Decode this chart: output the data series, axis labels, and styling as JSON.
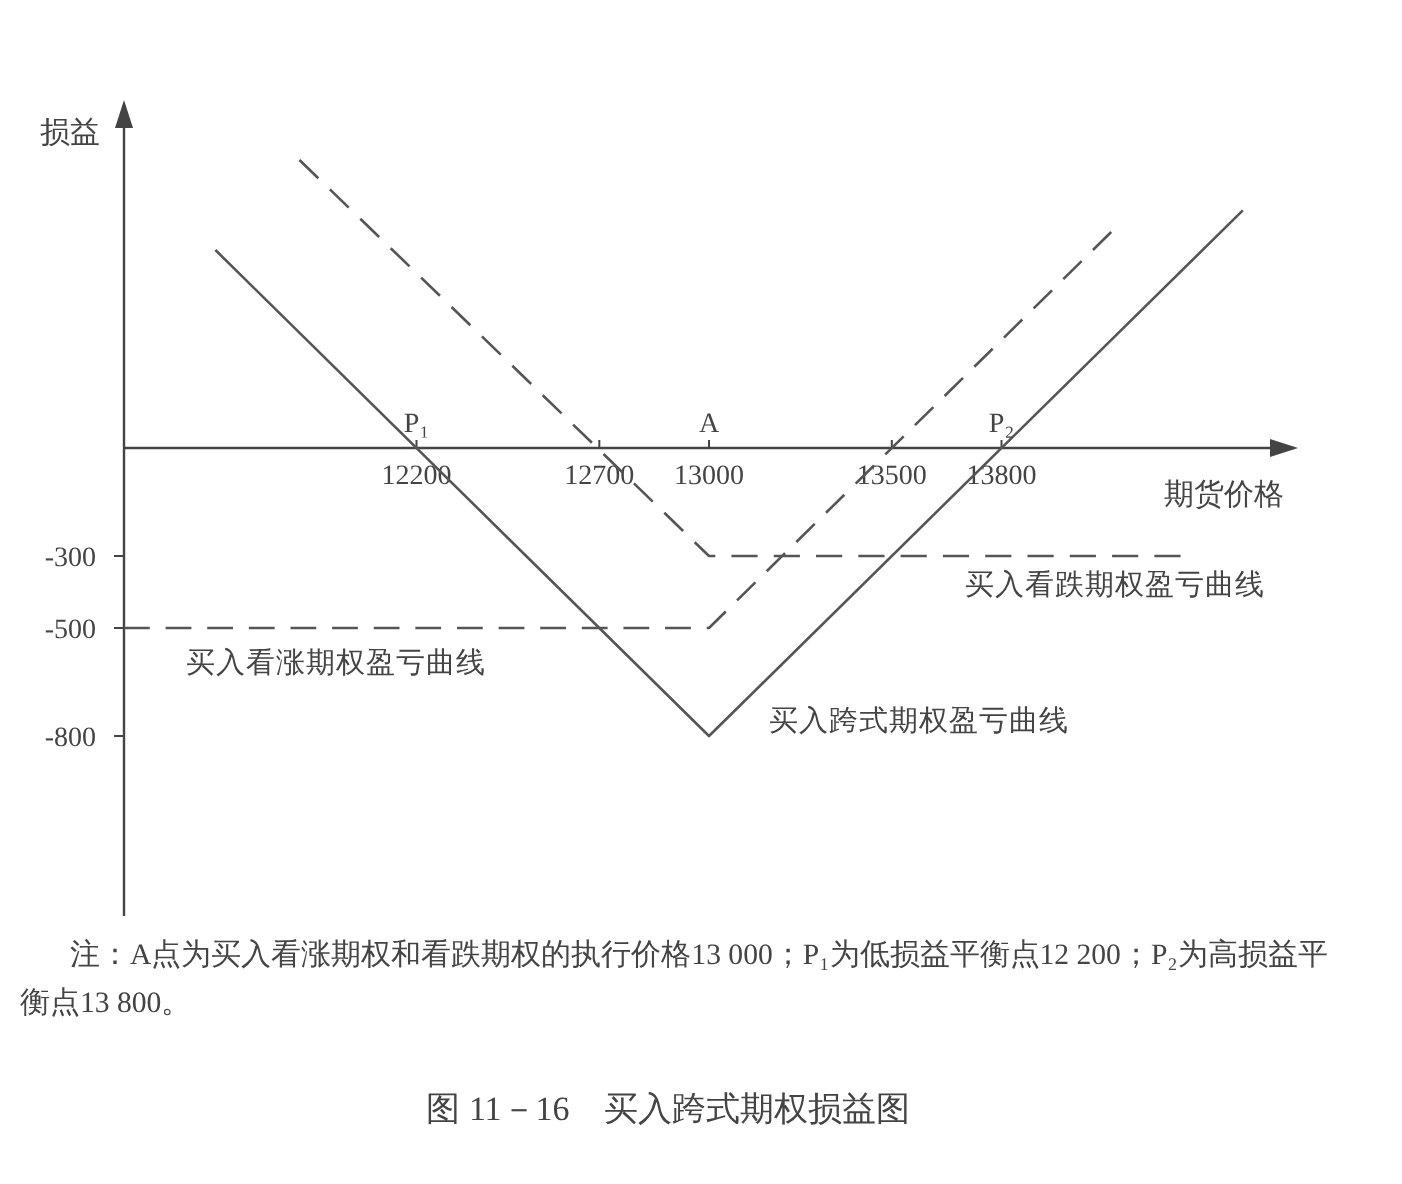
{
  "chart_data": {
    "type": "line",
    "title": "图 11－16　买入跨式期权损益图",
    "xlabel": "期货价格",
    "ylabel": "损益",
    "xlim": [
      11400,
      14600
    ],
    "ylim": [
      -1300,
      950
    ],
    "xticks": [
      12200,
      12700,
      13000,
      13500,
      13800
    ],
    "yticks": [
      -800,
      -500,
      -300
    ],
    "series": [
      {
        "name": "买入跨式期权盈亏曲线",
        "color": "#555555",
        "line_style": "solid",
        "x": [
          11650,
          13000,
          14460
        ],
        "values": [
          550,
          -800,
          660
        ]
      },
      {
        "name": "买入看涨期权盈亏曲线",
        "color": "#555555",
        "line_style": "dashed",
        "x": [
          11400,
          13000,
          14100
        ],
        "values": [
          -500,
          -500,
          600
        ]
      },
      {
        "name": "买入看跌期权盈亏曲线",
        "color": "#555555",
        "line_style": "dashed",
        "x": [
          11880,
          13000,
          14290
        ],
        "values": [
          800,
          -300,
          -300
        ]
      }
    ],
    "annotations": [
      {
        "text": "P₁",
        "x": 12200,
        "y": 0
      },
      "A",
      {
        "text": "P₂",
        "x": 13800,
        "y": 0
      },
      "注：A点为买入看涨期权和看跌期权的执行价格13 000；P₁为低损益平衡点12 200；P₂为高损益平衡点13 800。"
    ]
  }
}
